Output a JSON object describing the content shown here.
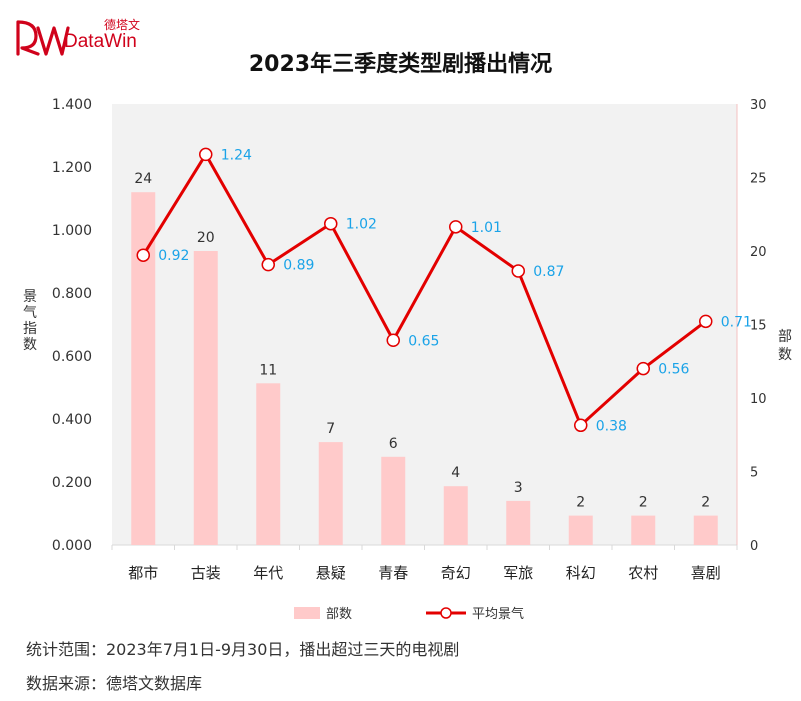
{
  "brand": {
    "name_cn": "德塔文",
    "name_en": "DataWin"
  },
  "colors": {
    "bar": "#ffcaca",
    "line": "#e30000",
    "label_line": "#1aa3e8",
    "plot_bg": "#f2f2f2"
  },
  "chart_data": {
    "type": "bar",
    "title": "2023年三季度类型剧播出情况",
    "categories": [
      "都市",
      "古装",
      "年代",
      "悬疑",
      "青春",
      "奇幻",
      "军旅",
      "科幻",
      "农村",
      "喜剧"
    ],
    "series": [
      {
        "name": "部数",
        "type": "bar",
        "axis": "right",
        "values": [
          24,
          20,
          11,
          7,
          6,
          4,
          3,
          2,
          2,
          2
        ]
      },
      {
        "name": "平均景气",
        "type": "line",
        "axis": "left",
        "values": [
          0.92,
          1.24,
          0.89,
          1.02,
          0.65,
          1.01,
          0.87,
          0.38,
          0.56,
          0.71
        ]
      }
    ],
    "y_left": {
      "label": "景气指数",
      "range": [
        0,
        1.4
      ],
      "ticks": [
        "0.000",
        "0.200",
        "0.400",
        "0.600",
        "0.800",
        "1.000",
        "1.200",
        "1.400"
      ]
    },
    "y_right": {
      "label": "部数",
      "range": [
        0,
        30
      ],
      "ticks": [
        "0",
        "5",
        "10",
        "15",
        "20",
        "25",
        "30"
      ]
    },
    "legend_position": "bottom",
    "grid": false
  },
  "footer": {
    "scope": "统计范围：2023年7月1日-9月30日，播出超过三天的电视剧",
    "source": "数据来源：德塔文数据库"
  }
}
